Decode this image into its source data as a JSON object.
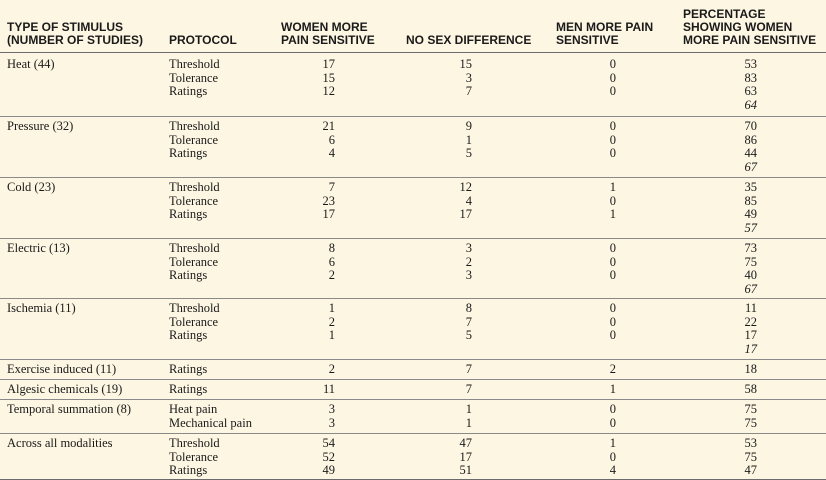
{
  "headers": [
    {
      "key": "stimulus",
      "lines": [
        "TYPE OF STIMULUS",
        "(NUMBER OF STUDIES)"
      ]
    },
    {
      "key": "protocol",
      "lines": [
        "PROTOCOL"
      ]
    },
    {
      "key": "women",
      "lines": [
        "WOMEN MORE",
        "PAIN SENSITIVE"
      ]
    },
    {
      "key": "nodiff",
      "lines": [
        "NO SEX DIFFERENCE"
      ]
    },
    {
      "key": "men",
      "lines": [
        "MEN MORE PAIN",
        "SENSITIVE"
      ]
    },
    {
      "key": "percent",
      "lines": [
        "PERCENTAGE",
        "SHOWING WOMEN",
        "MORE PAIN SENSITIVE"
      ]
    }
  ],
  "groups": [
    {
      "stimulus": "Heat (44)",
      "rows": [
        {
          "protocol": "Threshold",
          "women": "17",
          "nodiff": "15",
          "men": "0",
          "percent": "53"
        },
        {
          "protocol": "Tolerance",
          "women": "15",
          "nodiff": "3",
          "men": "0",
          "percent": "83"
        },
        {
          "protocol": "Ratings",
          "women": "12",
          "nodiff": "7",
          "men": "0",
          "percent": "63"
        }
      ],
      "average": "64"
    },
    {
      "stimulus": "Pressure (32)",
      "rows": [
        {
          "protocol": "Threshold",
          "women": "21",
          "nodiff": "9",
          "men": "0",
          "percent": "70"
        },
        {
          "protocol": "Tolerance",
          "women": "6",
          "nodiff": "1",
          "men": "0",
          "percent": "86"
        },
        {
          "protocol": "Ratings",
          "women": "4",
          "nodiff": "5",
          "men": "0",
          "percent": "44"
        }
      ],
      "average": "67"
    },
    {
      "stimulus": "Cold (23)",
      "rows": [
        {
          "protocol": "Threshold",
          "women": "7",
          "nodiff": "12",
          "men": "1",
          "percent": "35"
        },
        {
          "protocol": "Tolerance",
          "women": "23",
          "nodiff": "4",
          "men": "0",
          "percent": "85"
        },
        {
          "protocol": "Ratings",
          "women": "17",
          "nodiff": "17",
          "men": "1",
          "percent": "49"
        }
      ],
      "average": "57"
    },
    {
      "stimulus": "Electric (13)",
      "rows": [
        {
          "protocol": "Threshold",
          "women": "8",
          "nodiff": "3",
          "men": "0",
          "percent": "73"
        },
        {
          "protocol": "Tolerance",
          "women": "6",
          "nodiff": "2",
          "men": "0",
          "percent": "75"
        },
        {
          "protocol": "Ratings",
          "women": "2",
          "nodiff": "3",
          "men": "0",
          "percent": "40"
        }
      ],
      "average": "67"
    },
    {
      "stimulus": "Ischemia (11)",
      "rows": [
        {
          "protocol": "Threshold",
          "women": "1",
          "nodiff": "8",
          "men": "0",
          "percent": "11"
        },
        {
          "protocol": "Tolerance",
          "women": "2",
          "nodiff": "7",
          "men": "0",
          "percent": "22"
        },
        {
          "protocol": "Ratings",
          "women": "1",
          "nodiff": "5",
          "men": "0",
          "percent": "17"
        }
      ],
      "average": "17"
    },
    {
      "stimulus": "Exercise induced (11)",
      "rows": [
        {
          "protocol": "Ratings",
          "women": "2",
          "nodiff": "7",
          "men": "2",
          "percent": "18"
        }
      ]
    },
    {
      "stimulus": "Algesic chemicals (19)",
      "rows": [
        {
          "protocol": "Ratings",
          "women": "11",
          "nodiff": "7",
          "men": "1",
          "percent": "58"
        }
      ]
    },
    {
      "stimulus": "Temporal summation (8)",
      "rows": [
        {
          "protocol": "Heat pain",
          "women": "3",
          "nodiff": "1",
          "men": "0",
          "percent": "75"
        },
        {
          "protocol": "Mechanical pain",
          "women": "3",
          "nodiff": "1",
          "men": "0",
          "percent": "75"
        }
      ]
    },
    {
      "stimulus": "Across all modalities",
      "rows": [
        {
          "protocol": "Threshold",
          "women": "54",
          "nodiff": "47",
          "men": "1",
          "percent": "53"
        },
        {
          "protocol": "Tolerance",
          "women": "52",
          "nodiff": "17",
          "men": "0",
          "percent": "75"
        },
        {
          "protocol": "Ratings",
          "women": "49",
          "nodiff": "51",
          "men": "4",
          "percent": "47"
        }
      ]
    }
  ]
}
